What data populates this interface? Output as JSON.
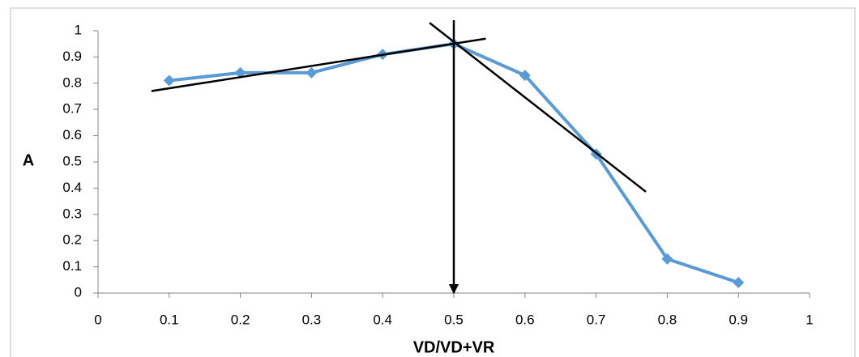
{
  "chart_data": {
    "type": "line",
    "x_label": "VD/VD+VR",
    "y_label": "A",
    "xlim": [
      0,
      1
    ],
    "xticks": [
      0,
      0.1,
      0.2,
      0.3,
      0.4,
      0.5,
      0.6,
      0.7,
      0.8,
      0.9,
      1
    ],
    "ylim": [
      0,
      1
    ],
    "yticks": [
      0,
      0.1,
      0.2,
      0.3,
      0.4,
      0.5,
      0.6,
      0.7,
      0.8,
      0.9,
      1
    ],
    "grid": false,
    "series": [
      {
        "color": "#5b9bd5",
        "marker": "diamond",
        "x": [
          0.1,
          0.2,
          0.3,
          0.4,
          0.5,
          0.6,
          0.7,
          0.8,
          0.9
        ],
        "values": [
          0.81,
          0.84,
          0.84,
          0.91,
          0.95,
          0.83,
          0.53,
          0.13,
          0.04
        ]
      },
      {
        "color": "#000000",
        "x": [
          0.075,
          0.545
        ],
        "values": [
          0.77,
          0.97
        ]
      },
      {
        "color": "#000000",
        "x": [
          0.466,
          0.77
        ],
        "values": [
          1.03,
          0.386
        ]
      }
    ],
    "arrow": {
      "color": "#000000",
      "x": [
        0.5,
        0.5
      ],
      "values": [
        1.04,
        0
      ]
    }
  }
}
